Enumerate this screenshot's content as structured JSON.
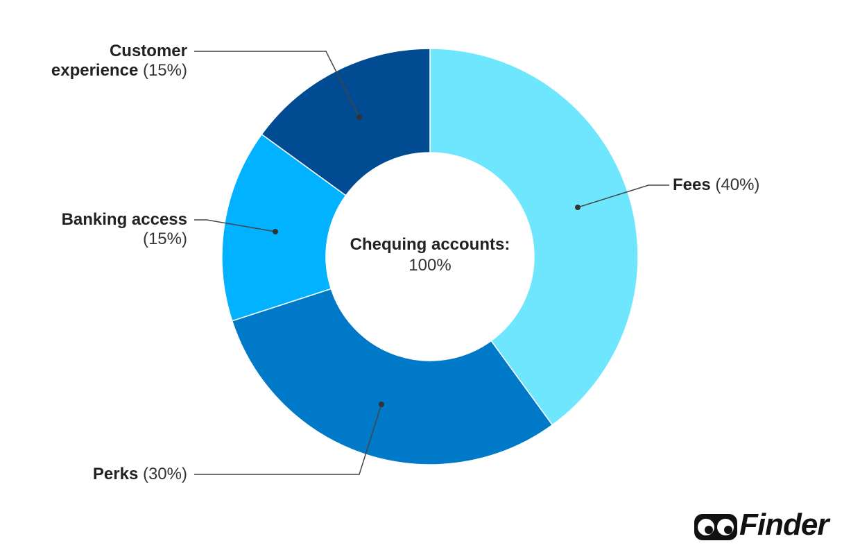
{
  "chart_data": {
    "type": "pie",
    "categories": [
      "Fees",
      "Perks",
      "Banking access",
      "Customer experience"
    ],
    "values": [
      40,
      30,
      15,
      15
    ],
    "value_labels": [
      "(40%)",
      "(30%)",
      "(15%)",
      "(15%)"
    ],
    "colors": [
      "#6ee6fd",
      "#0079c8",
      "#00b2ff",
      "#004b91"
    ],
    "center_title": "Chequing accounts:",
    "center_label": "100%",
    "logo": "Finder"
  }
}
